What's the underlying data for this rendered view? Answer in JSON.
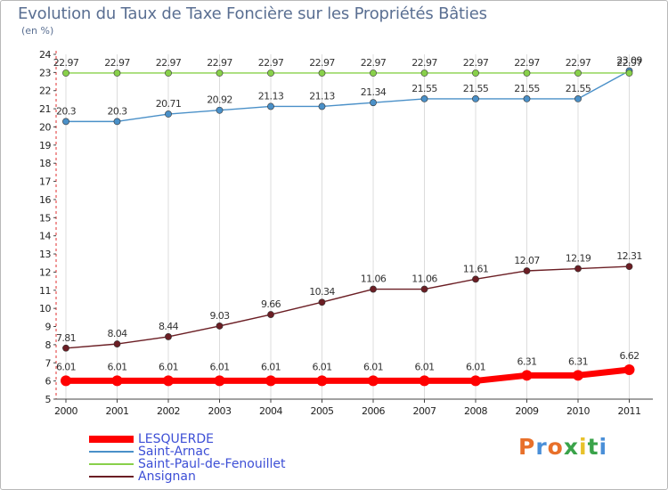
{
  "title": "Evolution du Taux de Taxe Foncière sur les Propriétés Bâties",
  "subtitle": "(en %)",
  "logo": {
    "letters": [
      "P",
      "r",
      "o",
      "x",
      "i",
      "t",
      "i"
    ],
    "colors": [
      "#e8702a",
      "#4a8fd8",
      "#e8702a",
      "#3aa34a",
      "#e8c12a",
      "#3aa34a",
      "#4a8fd8"
    ]
  },
  "chart_data": {
    "type": "line",
    "title": "Evolution du Taux de Taxe Foncière sur les Propriétés Bâties",
    "ylabel": "(en %)",
    "xlabel": "",
    "x": [
      "2000",
      "2001",
      "2002",
      "2003",
      "2004",
      "2005",
      "2006",
      "2007",
      "2008",
      "2009",
      "2010",
      "2011"
    ],
    "ylim": [
      5,
      24
    ],
    "yticks": [
      "5",
      "6",
      "7",
      "8",
      "9",
      "10",
      "11",
      "12",
      "13",
      "14",
      "15",
      "16",
      "17",
      "18",
      "19",
      "20",
      "21",
      "22",
      "23",
      "24"
    ],
    "series": [
      {
        "name": "LESQUERDE",
        "color": "#ff0000",
        "values": [
          6.01,
          6.01,
          6.01,
          6.01,
          6.01,
          6.01,
          6.01,
          6.01,
          6.01,
          6.31,
          6.31,
          6.62
        ],
        "labels": [
          "6.01",
          "6.01",
          "6.01",
          "6.01",
          "6.01",
          "6.01",
          "6.01",
          "6.01",
          "6.01",
          "6.31",
          "6.31",
          "6.62"
        ]
      },
      {
        "name": "Saint-Arnac",
        "color": "#4a90c8",
        "values": [
          20.3,
          20.3,
          20.71,
          20.92,
          21.13,
          21.13,
          21.34,
          21.55,
          21.55,
          21.55,
          21.55,
          23.09
        ],
        "labels": [
          "20.3",
          "20.3",
          "20.71",
          "20.92",
          "21.13",
          "21.13",
          "21.34",
          "21.55",
          "21.55",
          "21.55",
          "21.55",
          "23.09"
        ]
      },
      {
        "name": "Saint-Paul-de-Fenouillet",
        "color": "#88d04a",
        "values": [
          22.97,
          22.97,
          22.97,
          22.97,
          22.97,
          22.97,
          22.97,
          22.97,
          22.97,
          22.97,
          22.97,
          22.97
        ],
        "labels": [
          "22.97",
          "22.97",
          "22.97",
          "22.97",
          "22.97",
          "22.97",
          "22.97",
          "22.97",
          "22.97",
          "22.97",
          "22.97",
          "22.97"
        ]
      },
      {
        "name": "Ansignan",
        "color": "#6b1e24",
        "values": [
          7.81,
          8.04,
          8.44,
          9.03,
          9.66,
          10.34,
          11.06,
          11.06,
          11.61,
          12.07,
          12.19,
          12.31
        ],
        "labels": [
          "7.81",
          "8.04",
          "8.44",
          "9.03",
          "9.66",
          "10.34",
          "11.06",
          "11.06",
          "11.61",
          "12.07",
          "12.19",
          "12.31"
        ]
      }
    ],
    "legend": [
      "LESQUERDE",
      "Saint-Arnac",
      "Saint-Paul-de-Fenouillet",
      "Ansignan"
    ],
    "legend_position": "bottom-left"
  }
}
